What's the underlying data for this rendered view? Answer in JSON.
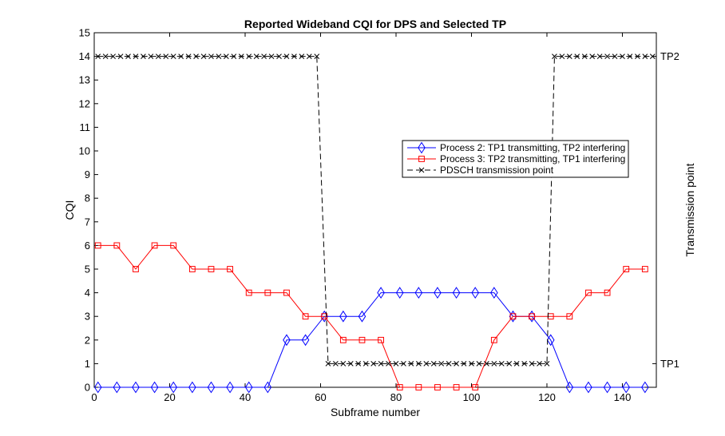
{
  "chart_data": {
    "type": "line",
    "title": "Reported Wideband CQI for DPS and Selected TP",
    "xlabel": "Subframe number",
    "ylabel": "CQI",
    "ylabel_right": "Transmission point",
    "xlim": [
      0,
      149
    ],
    "ylim": [
      0,
      15
    ],
    "xticks": [
      "0",
      "20",
      "40",
      "60",
      "80",
      "100",
      "120",
      "140"
    ],
    "yticks": [
      "0",
      "1",
      "2",
      "3",
      "4",
      "5",
      "6",
      "7",
      "8",
      "9",
      "10",
      "11",
      "12",
      "13",
      "14",
      "15"
    ],
    "right_ticks": [
      {
        "label": "TP1",
        "value": 1
      },
      {
        "label": "TP2",
        "value": 14
      }
    ],
    "grid": false,
    "legend_position": "center-right",
    "series": [
      {
        "name": "Process 2: TP1 transmitting, TP2 interfering",
        "color": "#0000ff",
        "marker": "diamond",
        "line": "solid",
        "x": [
          1,
          6,
          11,
          16,
          21,
          26,
          31,
          36,
          41,
          46,
          51,
          56,
          61,
          66,
          71,
          76,
          81,
          86,
          91,
          96,
          101,
          106,
          111,
          116,
          121,
          126,
          131,
          136,
          141,
          146
        ],
        "y": [
          0,
          0,
          0,
          0,
          0,
          0,
          0,
          0,
          0,
          0,
          2,
          2,
          3,
          3,
          3,
          4,
          4,
          4,
          4,
          4,
          4,
          4,
          3,
          3,
          2,
          0,
          0,
          0,
          0,
          0
        ]
      },
      {
        "name": "Process 3: TP2 transmitting, TP1 interfering",
        "color": "#ff0000",
        "marker": "square",
        "line": "solid",
        "x": [
          1,
          6,
          11,
          16,
          21,
          26,
          31,
          36,
          41,
          46,
          51,
          56,
          61,
          66,
          71,
          76,
          81,
          86,
          91,
          96,
          101,
          106,
          111,
          116,
          121,
          126,
          131,
          136,
          141,
          146
        ],
        "y": [
          6,
          6,
          5,
          6,
          6,
          5,
          5,
          5,
          4,
          4,
          4,
          3,
          3,
          2,
          2,
          2,
          0,
          0,
          0,
          0,
          0,
          2,
          3,
          3,
          3,
          3,
          4,
          4,
          5,
          5
        ]
      },
      {
        "name": "PDSCH transmission point",
        "color": "#000000",
        "marker": "x",
        "line": "dashed",
        "x": [
          1,
          3,
          5,
          7,
          9,
          11,
          13,
          15,
          17,
          19,
          21,
          23,
          25,
          27,
          29,
          31,
          33,
          35,
          37,
          39,
          41,
          43,
          45,
          47,
          49,
          51,
          53,
          55,
          57,
          59,
          62,
          64,
          66,
          68,
          70,
          72,
          74,
          76,
          78,
          80,
          82,
          84,
          86,
          88,
          90,
          92,
          94,
          96,
          98,
          100,
          102,
          104,
          106,
          108,
          110,
          112,
          114,
          116,
          118,
          120,
          122,
          124,
          126,
          128,
          130,
          132,
          134,
          136,
          138,
          140,
          142,
          144,
          146,
          148
        ],
        "y": [
          14,
          14,
          14,
          14,
          14,
          14,
          14,
          14,
          14,
          14,
          14,
          14,
          14,
          14,
          14,
          14,
          14,
          14,
          14,
          14,
          14,
          14,
          14,
          14,
          14,
          14,
          14,
          14,
          14,
          14,
          1,
          1,
          1,
          1,
          1,
          1,
          1,
          1,
          1,
          1,
          1,
          1,
          1,
          1,
          1,
          1,
          1,
          1,
          1,
          1,
          1,
          1,
          1,
          1,
          1,
          1,
          1,
          1,
          1,
          1,
          14,
          14,
          14,
          14,
          14,
          14,
          14,
          14,
          14,
          14,
          14,
          14,
          14,
          14
        ]
      }
    ]
  }
}
